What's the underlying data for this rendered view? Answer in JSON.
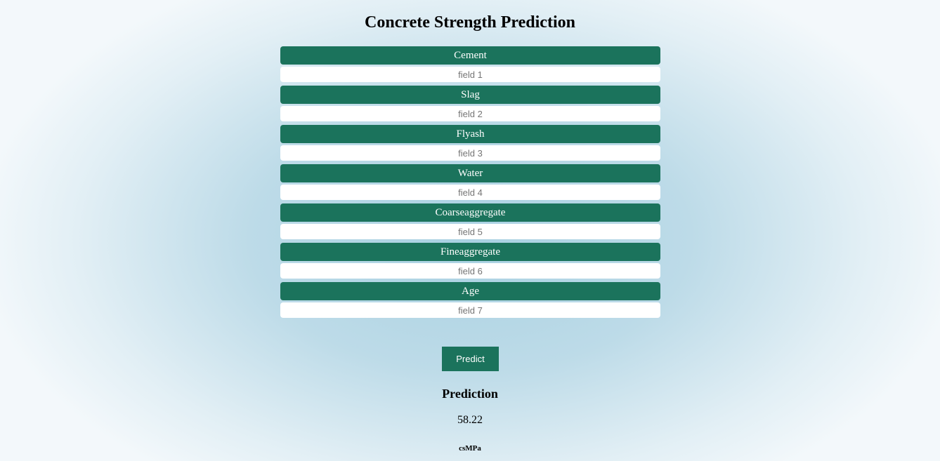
{
  "page": {
    "title": "Concrete Strength Prediction"
  },
  "form": {
    "fields": [
      {
        "label": "Cement",
        "placeholder": "field 1",
        "value": ""
      },
      {
        "label": "Slag",
        "placeholder": "field 2",
        "value": ""
      },
      {
        "label": "Flyash",
        "placeholder": "field 3",
        "value": ""
      },
      {
        "label": "Water",
        "placeholder": "field 4",
        "value": ""
      },
      {
        "label": "Coarseaggregate",
        "placeholder": "field 5",
        "value": ""
      },
      {
        "label": "Fineaggregate",
        "placeholder": "field 6",
        "value": ""
      },
      {
        "label": "Age",
        "placeholder": "field 7",
        "value": ""
      }
    ],
    "submit_label": "Predict"
  },
  "result": {
    "heading": "Prediction",
    "value": "58.22",
    "unit": "csMPa"
  },
  "colors": {
    "accent": "#1b735c",
    "background_center": "#a9d1e2",
    "background_edge": "#f3f8fb",
    "input_background": "#ffffff"
  }
}
